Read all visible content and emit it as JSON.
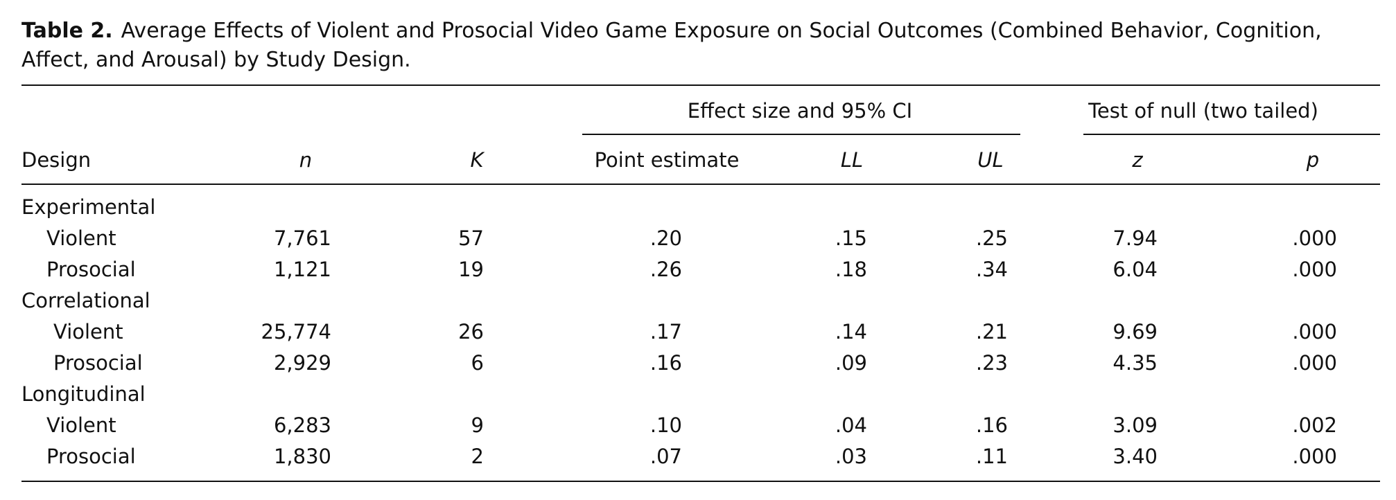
{
  "table": {
    "label": "Table 2.",
    "caption": "Average Effects of Violent and Prosocial Video Game Exposure on Social Outcomes (Combined Behavior, Cognition, Affect, and Arousal) by Study Design.",
    "group_headers": {
      "effect": "Effect size and 95% CI",
      "test": "Test of null (two tailed)"
    },
    "columns": {
      "design": "Design",
      "n": "n",
      "k": "K",
      "point": "Point estimate",
      "ll": "LL",
      "ul": "UL",
      "z": "z",
      "p": "p"
    },
    "groups": [
      {
        "label": "Experimental",
        "rows": [
          {
            "design": "Violent",
            "n": "7,761",
            "k": "57",
            "point": ".20",
            "ll": ".15",
            "ul": ".25",
            "z": "7.94",
            "p": ".000"
          },
          {
            "design": "Prosocial",
            "n": "1,121",
            "k": "19",
            "point": ".26",
            "ll": ".18",
            "ul": ".34",
            "z": "6.04",
            "p": ".000"
          }
        ]
      },
      {
        "label": "Correlational",
        "rows": [
          {
            "design": "Violent",
            "n": "25,774",
            "k": "26",
            "point": ".17",
            "ll": ".14",
            "ul": ".21",
            "z": "9.69",
            "p": ".000"
          },
          {
            "design": "Prosocial",
            "n": "2,929",
            "k": "6",
            "point": ".16",
            "ll": ".09",
            "ul": ".23",
            "z": "4.35",
            "p": ".000"
          }
        ]
      },
      {
        "label": "Longitudinal",
        "rows": [
          {
            "design": "Violent",
            "n": "6,283",
            "k": "9",
            "point": ".10",
            "ll": ".04",
            "ul": ".16",
            "z": "3.09",
            "p": ".002"
          },
          {
            "design": "Prosocial",
            "n": "1,830",
            "k": "2",
            "point": ".07",
            "ll": ".03",
            "ul": ".11",
            "z": "3.40",
            "p": ".000"
          }
        ]
      }
    ]
  }
}
